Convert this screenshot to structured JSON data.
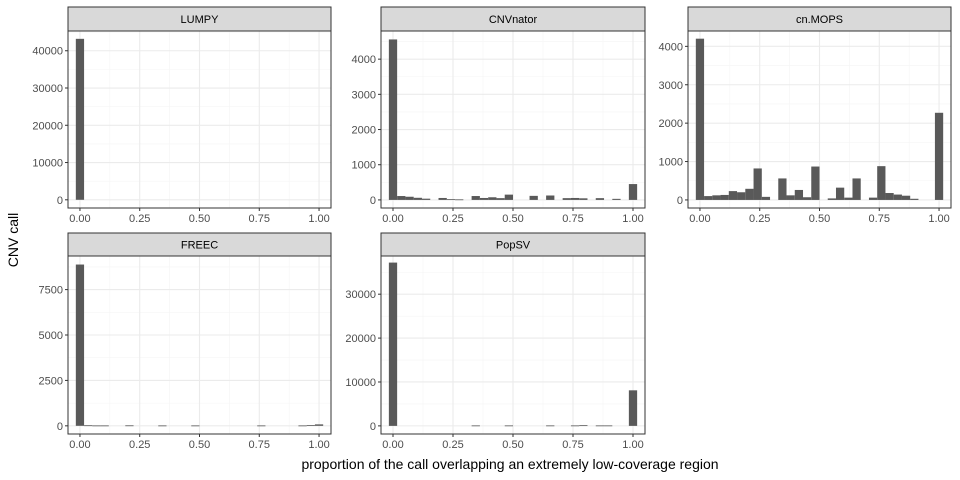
{
  "figure": {
    "ylabel": "CNV call",
    "xlabel": "proportion of the call overlapping an extremely low-coverage region"
  },
  "colors": {
    "bar": "#595959",
    "strip_fill": "#d9d9d9",
    "strip_border": "#333333",
    "panel_border": "#333333",
    "grid_major": "#ebebeb",
    "grid_minor": "#f5f5f5",
    "tick_text": "#4d4d4d",
    "title_text": "#000000"
  },
  "chart_data": [
    {
      "type": "bar",
      "title": "LUMPY",
      "x_ticks": [
        0,
        0.25,
        0.5,
        0.75,
        1
      ],
      "x_tick_labels": [
        "0.00",
        "0.25",
        "0.50",
        "0.75",
        "1.00"
      ],
      "xlim": [
        -0.05,
        1.05
      ],
      "ylim": [
        -2200,
        45300
      ],
      "y_ticks": [
        0,
        10000,
        20000,
        30000,
        40000
      ],
      "y_tick_labels": [
        "0",
        "10000",
        "20000",
        "30000",
        "40000"
      ],
      "bin_width": 0.0345,
      "bins": [
        {
          "x": 0.0,
          "count": 43200
        }
      ]
    },
    {
      "type": "bar",
      "title": "CNVnator",
      "x_ticks": [
        0,
        0.25,
        0.5,
        0.75,
        1
      ],
      "x_tick_labels": [
        "0.00",
        "0.25",
        "0.50",
        "0.75",
        "1.00"
      ],
      "xlim": [
        -0.05,
        1.05
      ],
      "ylim": [
        -230,
        4800
      ],
      "y_ticks": [
        0,
        1000,
        2000,
        3000,
        4000
      ],
      "y_tick_labels": [
        "0",
        "1000",
        "2000",
        "3000",
        "4000"
      ],
      "bin_width": 0.0345,
      "bins": [
        {
          "x": 0.0,
          "count": 4560
        },
        {
          "x": 0.0345,
          "count": 110
        },
        {
          "x": 0.069,
          "count": 90
        },
        {
          "x": 0.1034,
          "count": 60
        },
        {
          "x": 0.1379,
          "count": 35
        },
        {
          "x": 0.2069,
          "count": 55
        },
        {
          "x": 0.2414,
          "count": 20
        },
        {
          "x": 0.2759,
          "count": 15
        },
        {
          "x": 0.3448,
          "count": 110
        },
        {
          "x": 0.3793,
          "count": 55
        },
        {
          "x": 0.4138,
          "count": 75
        },
        {
          "x": 0.4483,
          "count": 50
        },
        {
          "x": 0.4828,
          "count": 150
        },
        {
          "x": 0.5862,
          "count": 115
        },
        {
          "x": 0.6552,
          "count": 125
        },
        {
          "x": 0.7241,
          "count": 50
        },
        {
          "x": 0.7586,
          "count": 55
        },
        {
          "x": 0.7931,
          "count": 45
        },
        {
          "x": 0.8621,
          "count": 50
        },
        {
          "x": 0.931,
          "count": 30
        },
        {
          "x": 1.0,
          "count": 450
        }
      ]
    },
    {
      "type": "bar",
      "title": "cn.MOPS",
      "x_ticks": [
        0,
        0.25,
        0.5,
        0.75,
        1
      ],
      "x_tick_labels": [
        "0.00",
        "0.25",
        "0.50",
        "0.75",
        "1.00"
      ],
      "xlim": [
        -0.05,
        1.05
      ],
      "ylim": [
        -210,
        4400
      ],
      "y_ticks": [
        0,
        1000,
        2000,
        3000,
        4000
      ],
      "y_tick_labels": [
        "0",
        "1000",
        "2000",
        "3000",
        "4000"
      ],
      "bin_width": 0.0345,
      "bins": [
        {
          "x": 0.0,
          "count": 4200
        },
        {
          "x": 0.0345,
          "count": 100
        },
        {
          "x": 0.069,
          "count": 120
        },
        {
          "x": 0.1034,
          "count": 130
        },
        {
          "x": 0.1379,
          "count": 230
        },
        {
          "x": 0.1724,
          "count": 200
        },
        {
          "x": 0.2069,
          "count": 290
        },
        {
          "x": 0.2414,
          "count": 820
        },
        {
          "x": 0.2759,
          "count": 80
        },
        {
          "x": 0.3448,
          "count": 560
        },
        {
          "x": 0.3793,
          "count": 120
        },
        {
          "x": 0.4138,
          "count": 260
        },
        {
          "x": 0.4483,
          "count": 70
        },
        {
          "x": 0.4828,
          "count": 870
        },
        {
          "x": 0.5517,
          "count": 40
        },
        {
          "x": 0.5862,
          "count": 320
        },
        {
          "x": 0.6207,
          "count": 60
        },
        {
          "x": 0.6552,
          "count": 560
        },
        {
          "x": 0.7241,
          "count": 60
        },
        {
          "x": 0.7586,
          "count": 880
        },
        {
          "x": 0.7931,
          "count": 180
        },
        {
          "x": 0.8276,
          "count": 140
        },
        {
          "x": 0.8621,
          "count": 110
        },
        {
          "x": 0.8966,
          "count": 30
        },
        {
          "x": 1.0,
          "count": 2270
        }
      ]
    },
    {
      "type": "bar",
      "title": "FREEC",
      "x_ticks": [
        0,
        0.25,
        0.5,
        0.75,
        1
      ],
      "x_tick_labels": [
        "0.00",
        "0.25",
        "0.50",
        "0.75",
        "1.00"
      ],
      "xlim": [
        -0.05,
        1.05
      ],
      "ylim": [
        -450,
        9350
      ],
      "y_ticks": [
        0,
        2500,
        5000,
        7500
      ],
      "y_tick_labels": [
        "0",
        "2500",
        "5000",
        "7500"
      ],
      "bin_width": 0.0345,
      "bins": [
        {
          "x": 0.0,
          "count": 8880
        },
        {
          "x": 0.0345,
          "count": 30
        },
        {
          "x": 0.069,
          "count": 20
        },
        {
          "x": 0.1034,
          "count": 20
        },
        {
          "x": 0.2069,
          "count": 25
        },
        {
          "x": 0.3448,
          "count": 20
        },
        {
          "x": 0.4828,
          "count": 20
        },
        {
          "x": 0.7586,
          "count": 20
        },
        {
          "x": 0.931,
          "count": 20
        },
        {
          "x": 0.9655,
          "count": 40
        },
        {
          "x": 1.0,
          "count": 80
        }
      ]
    },
    {
      "type": "bar",
      "title": "PopSV",
      "x_ticks": [
        0,
        0.25,
        0.5,
        0.75,
        1
      ],
      "x_tick_labels": [
        "0.00",
        "0.25",
        "0.50",
        "0.75",
        "1.00"
      ],
      "xlim": [
        -0.05,
        1.05
      ],
      "ylim": [
        -1850,
        38700
      ],
      "y_ticks": [
        0,
        10000,
        20000,
        30000
      ],
      "y_tick_labels": [
        "0",
        "10000",
        "20000",
        "30000"
      ],
      "bin_width": 0.0345,
      "bins": [
        {
          "x": 0.0,
          "count": 37200
        },
        {
          "x": 0.3448,
          "count": 100
        },
        {
          "x": 0.4828,
          "count": 100
        },
        {
          "x": 0.6552,
          "count": 100
        },
        {
          "x": 0.7586,
          "count": 100
        },
        {
          "x": 0.7931,
          "count": 150
        },
        {
          "x": 0.8621,
          "count": 100
        },
        {
          "x": 0.8966,
          "count": 100
        },
        {
          "x": 1.0,
          "count": 8100
        }
      ]
    }
  ]
}
